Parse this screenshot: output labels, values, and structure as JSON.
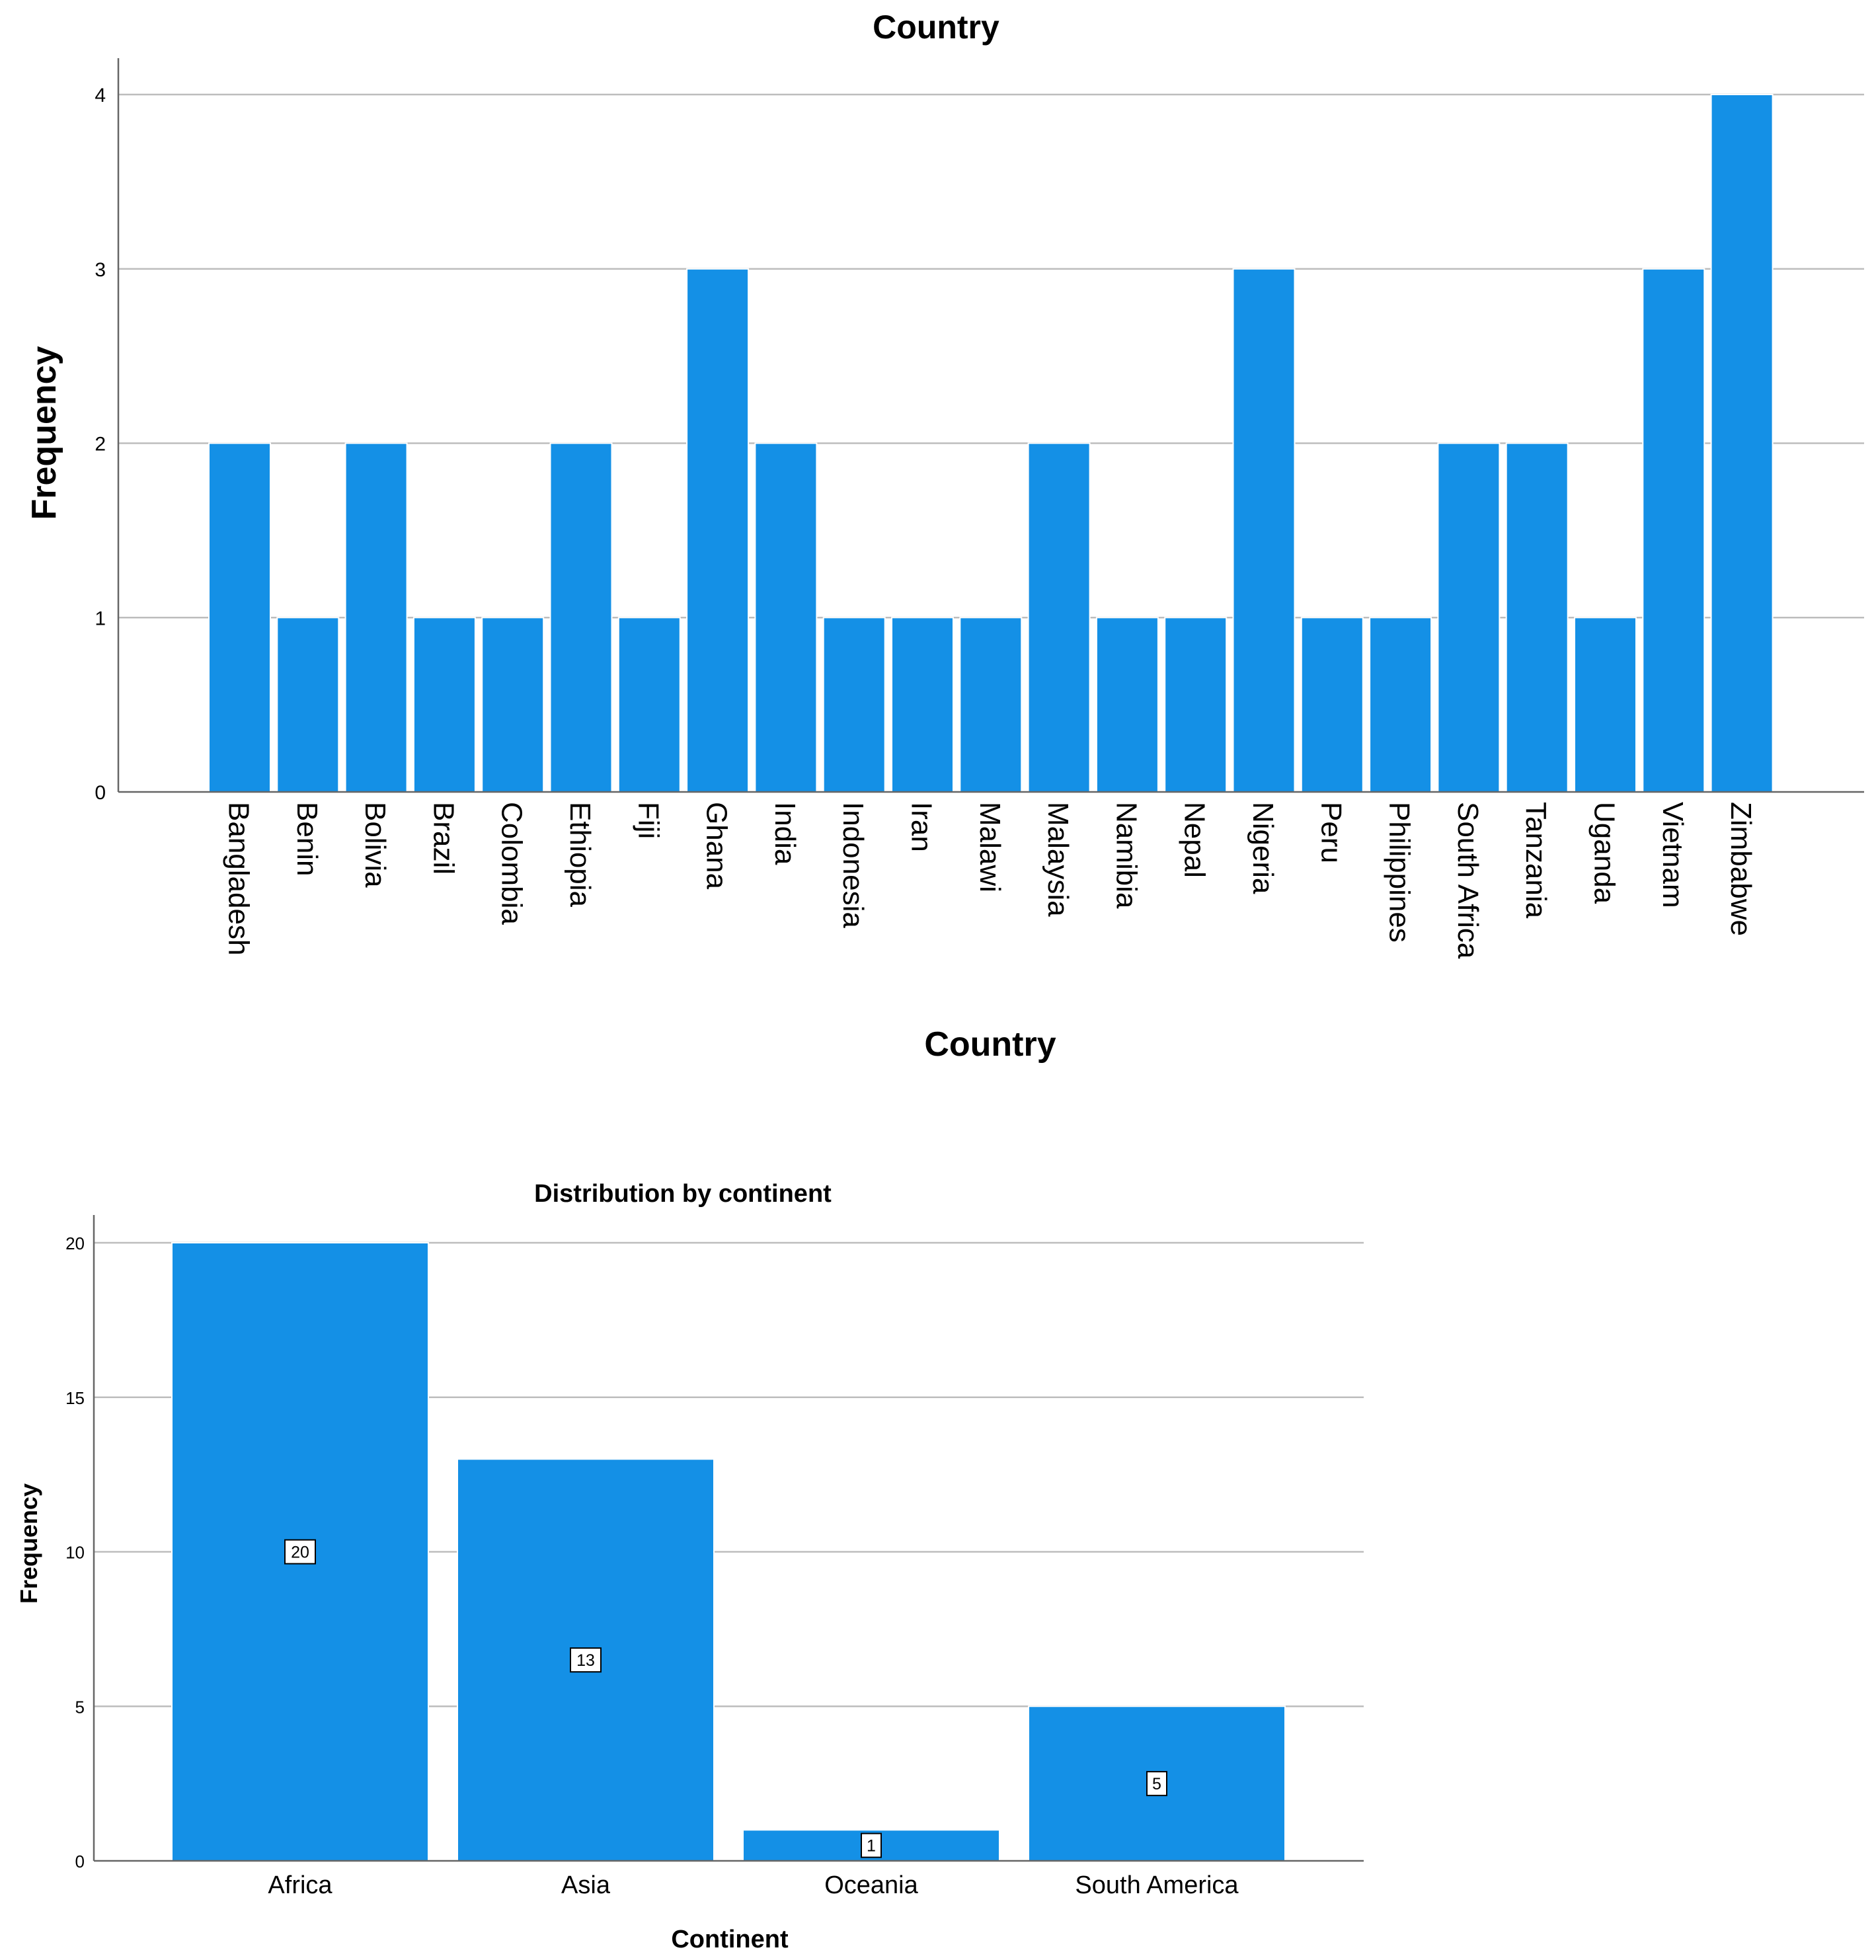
{
  "chart_data": [
    {
      "type": "bar",
      "title": "Country",
      "xlabel": "Country",
      "ylabel": "Frequency",
      "ylim": [
        0,
        4
      ],
      "yticks": [
        0,
        1,
        2,
        3,
        4
      ],
      "grid": true,
      "bar_color": "#1490e6",
      "categories": [
        "Bangladesh",
        "Benin",
        "Bolivia",
        "Brazil",
        "Colombia",
        "Ethiopia",
        "Fiji",
        "Ghana",
        "India",
        "Indonesia",
        "Iran",
        "Malawi",
        "Malaysia",
        "Namibia",
        "Nepal",
        "Nigeria",
        "Peru",
        "Philippines",
        "South Africa",
        "Tanzania",
        "Uganda",
        "Vietnam",
        "Zimbabwe"
      ],
      "values": [
        2,
        1,
        2,
        1,
        1,
        2,
        1,
        3,
        2,
        1,
        1,
        1,
        2,
        1,
        1,
        3,
        1,
        1,
        2,
        2,
        1,
        3,
        4
      ]
    },
    {
      "type": "bar",
      "title": "Distribution by continent",
      "xlabel": "Continent",
      "ylabel": "Frequency",
      "ylim": [
        0,
        21
      ],
      "yticks": [
        0,
        5,
        10,
        15,
        20
      ],
      "grid": true,
      "bar_color": "#1490e6",
      "categories": [
        "Africa",
        "Asia",
        "Oceania",
        "South America"
      ],
      "values": [
        20,
        13,
        1,
        5
      ],
      "data_labels": [
        "20",
        "13",
        "1",
        "5"
      ]
    }
  ]
}
